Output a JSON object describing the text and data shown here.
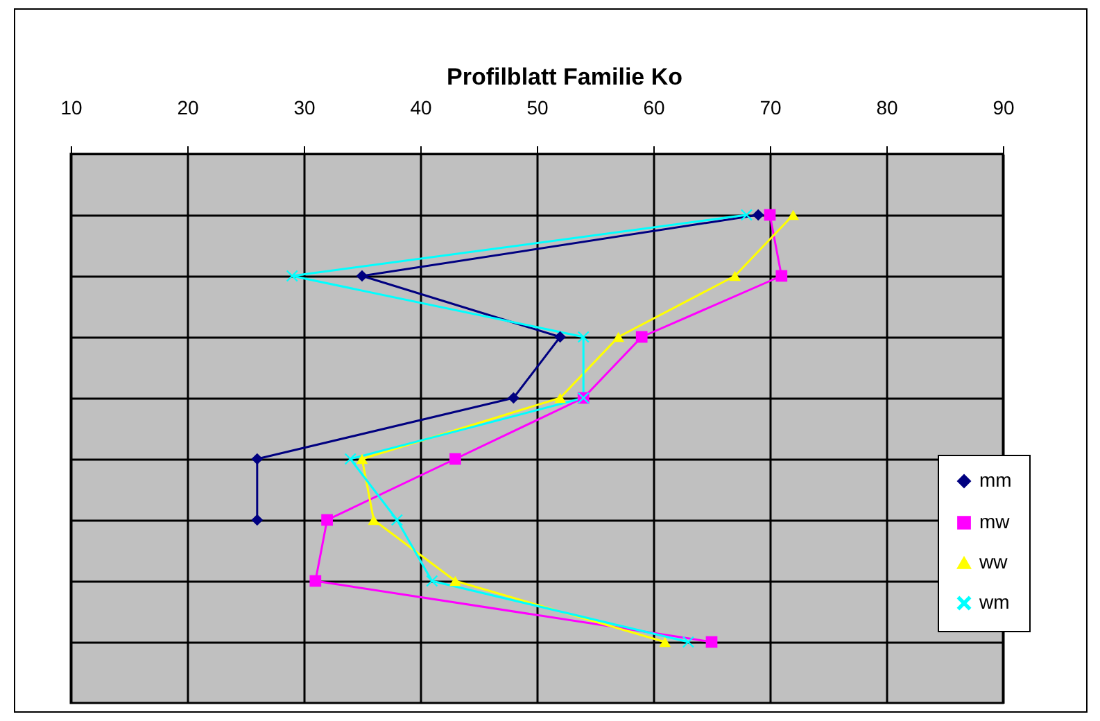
{
  "chart_data": {
    "type": "line",
    "title": "Profilblatt Familie Ko",
    "orientation": "horizontal",
    "categories": [
      null,
      null,
      null,
      null,
      null,
      null,
      null,
      null
    ],
    "series": [
      {
        "name": "mm",
        "color": "#000080",
        "marker": "diamond",
        "values": [
          69,
          35,
          52,
          48,
          26,
          26,
          null,
          null
        ]
      },
      {
        "name": "mw",
        "color": "#ff00ff",
        "marker": "square",
        "values": [
          70,
          71,
          59,
          54,
          43,
          32,
          31,
          65
        ]
      },
      {
        "name": "ww",
        "color": "#ffff00",
        "marker": "triangle",
        "values": [
          72,
          67,
          57,
          52,
          35,
          36,
          43,
          61
        ]
      },
      {
        "name": "wm",
        "color": "#00ffff",
        "marker": "cross",
        "values": [
          68,
          29,
          54,
          54,
          34,
          38,
          41,
          63
        ]
      }
    ],
    "xlim": [
      10,
      90
    ],
    "xticks": [
      10,
      20,
      30,
      40,
      50,
      60,
      70,
      80,
      90
    ],
    "grid": true,
    "legend": "bottom right",
    "tick_labels": "x"
  }
}
